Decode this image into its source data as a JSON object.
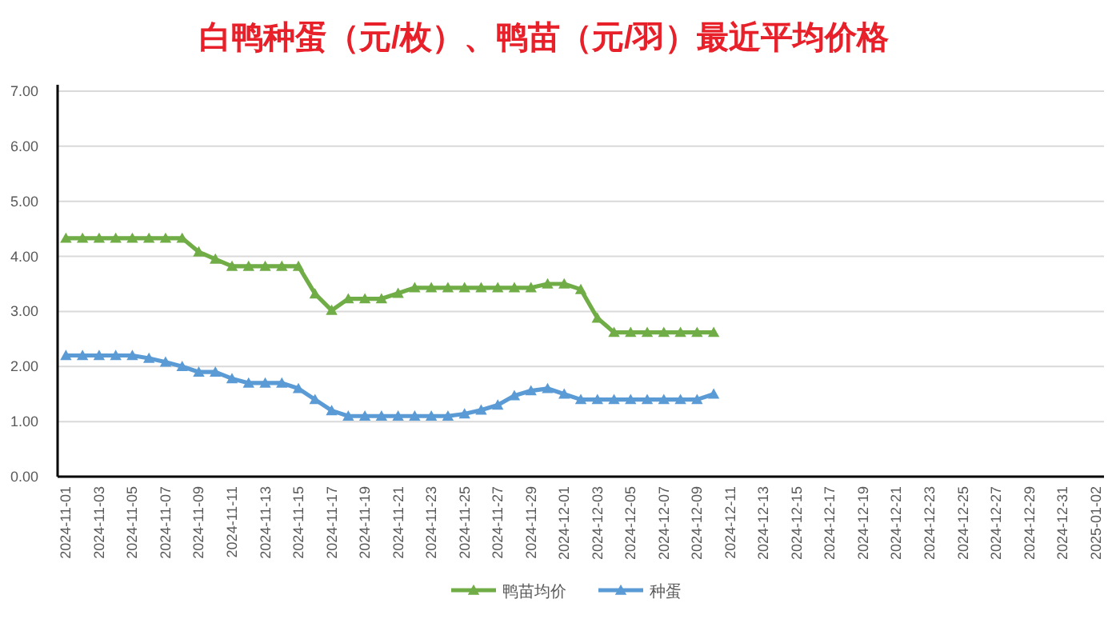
{
  "chart_data": {
    "type": "line",
    "title": "白鸭种蛋（元/枚）、鸭苗（元/羽）最近平均价格",
    "categories": [
      "2024-11-01",
      null,
      "2024-11-03",
      null,
      "2024-11-05",
      null,
      "2024-11-07",
      null,
      "2024-11-09",
      null,
      "2024-11-11",
      null,
      "2024-11-13",
      null,
      "2024-11-15",
      null,
      "2024-11-17",
      null,
      "2024-11-19",
      null,
      "2024-11-21",
      null,
      "2024-11-23",
      null,
      "2024-11-25",
      null,
      "2024-11-27",
      null,
      "2024-11-29",
      null,
      "2024-12-01",
      null,
      "2024-12-03",
      null,
      "2024-12-05",
      null,
      "2024-12-07",
      null,
      "2024-12-09",
      null,
      "2024-12-11",
      null,
      "2024-12-13",
      null,
      "2024-12-15",
      null,
      "2024-12-17",
      null,
      "2024-12-19",
      null,
      "2024-12-21",
      null,
      "2024-12-23",
      null,
      "2024-12-25",
      null,
      "2024-12-27",
      null,
      "2024-12-29",
      null,
      "2024-12-31",
      null,
      "2025-01-02"
    ],
    "series": [
      {
        "name": "鸭苗均价",
        "color": "#70ad47",
        "values": [
          4.33,
          4.33,
          4.33,
          4.33,
          4.33,
          4.33,
          4.33,
          4.33,
          4.08,
          3.95,
          3.82,
          3.82,
          3.82,
          3.82,
          3.82,
          3.32,
          3.02,
          3.23,
          3.23,
          3.23,
          3.33,
          3.43,
          3.43,
          3.43,
          3.43,
          3.43,
          3.43,
          3.43,
          3.43,
          3.5,
          3.5,
          3.4,
          2.88,
          2.62,
          2.62,
          2.62,
          2.62,
          2.62,
          2.62,
          2.62,
          null,
          null,
          null,
          null,
          null,
          null,
          null,
          null,
          null,
          null,
          null,
          null,
          null,
          null,
          null,
          null,
          null,
          null,
          null,
          null,
          null,
          null,
          null
        ]
      },
      {
        "name": "种蛋",
        "color": "#5b9bd5",
        "values": [
          2.2,
          2.2,
          2.2,
          2.2,
          2.2,
          2.15,
          2.08,
          2.0,
          1.9,
          1.9,
          1.78,
          1.7,
          1.7,
          1.7,
          1.6,
          1.4,
          1.2,
          1.1,
          1.1,
          1.1,
          1.1,
          1.1,
          1.1,
          1.1,
          1.14,
          1.21,
          1.3,
          1.47,
          1.56,
          1.6,
          1.5,
          1.4,
          1.4,
          1.4,
          1.4,
          1.4,
          1.4,
          1.4,
          1.4,
          1.5,
          null,
          null,
          null,
          null,
          null,
          null,
          null,
          null,
          null,
          null,
          null,
          null,
          null,
          null,
          null,
          null,
          null,
          null,
          null,
          null,
          null,
          null,
          null
        ]
      }
    ],
    "ylim": [
      0,
      7
    ],
    "yticks": [
      {
        "value": 0,
        "label": "0.00"
      },
      {
        "value": 1,
        "label": "1.00"
      },
      {
        "value": 2,
        "label": "2.00"
      },
      {
        "value": 3,
        "label": "3.00"
      },
      {
        "value": 4,
        "label": "4.00"
      },
      {
        "value": 5,
        "label": "5.00"
      },
      {
        "value": 6,
        "label": "6.00"
      },
      {
        "value": 7,
        "label": "7.00"
      }
    ],
    "grid": "y",
    "legend": "bottom",
    "marker": "triangle"
  }
}
